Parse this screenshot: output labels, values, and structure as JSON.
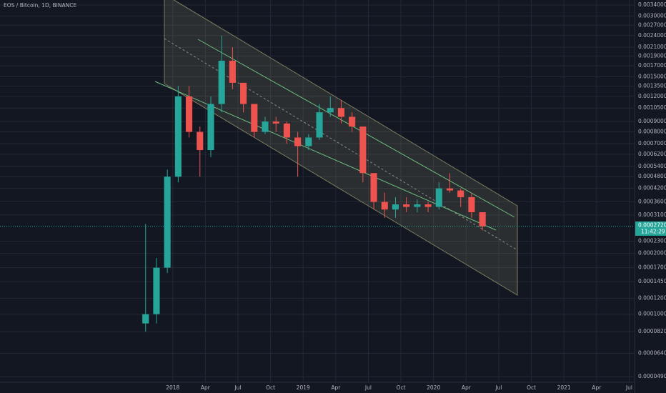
{
  "chart_data": {
    "type": "candlestick",
    "title": "EOS / Bitcoin, 1D, BINANCE",
    "log_scale": true,
    "grid": true,
    "up_color": "#26a69a",
    "down_color": "#ef5350",
    "x": [
      9.5,
      10.5,
      11.5,
      12.5,
      13.5,
      14.5,
      15.5,
      16.5,
      17.5,
      18.5,
      19.5,
      20.5,
      21.5,
      22.5,
      23.5,
      24.5,
      25.5,
      26.5,
      27.5,
      28.5,
      29.5,
      30.5,
      31.5,
      32.5,
      33.5,
      34.5,
      35.5,
      36.5,
      37.5,
      38.5,
      39.5,
      40.5
    ],
    "open": [
      9e-05,
      0.0001,
      0.00017,
      0.00048,
      0.0012,
      0.0008,
      0.00065,
      0.0011,
      0.0018,
      0.0014,
      0.0011,
      0.0008,
      0.0009,
      0.00088,
      0.00075,
      0.00068,
      0.00075,
      0.001,
      0.00105,
      0.00095,
      0.00085,
      0.0005,
      0.00036,
      0.00033,
      0.00035,
      0.00034,
      0.00035,
      0.00034,
      0.00042,
      0.00041,
      0.00038,
      0.00032
    ],
    "high": [
      0.00028,
      0.00019,
      0.00052,
      0.00135,
      0.00135,
      0.00085,
      0.0012,
      0.0024,
      0.0021,
      0.0014,
      0.0011,
      0.00095,
      0.00095,
      0.0009,
      0.0008,
      0.00078,
      0.0011,
      0.0012,
      0.00115,
      0.001,
      0.00085,
      0.0005,
      0.0004,
      0.00038,
      0.00038,
      0.00037,
      0.00036,
      0.00045,
      0.0005,
      0.00042,
      0.0004,
      0.00032
    ],
    "low": [
      8.2e-05,
      9e-05,
      0.00016,
      0.00045,
      0.00075,
      0.00048,
      0.0006,
      0.001,
      0.0013,
      0.001,
      0.00075,
      0.00078,
      0.0008,
      0.0007,
      0.00048,
      0.00065,
      0.00073,
      0.00095,
      0.00088,
      0.0008,
      0.00045,
      0.00033,
      0.0003,
      0.0003,
      0.00032,
      0.00032,
      0.00032,
      0.00033,
      0.0004,
      0.00034,
      0.0003,
      0.00026
    ],
    "close": [
      0.0001,
      0.00017,
      0.00048,
      0.0012,
      0.0008,
      0.00065,
      0.0011,
      0.0018,
      0.0014,
      0.0011,
      0.0008,
      0.0009,
      0.00088,
      0.00075,
      0.00068,
      0.00075,
      0.001,
      0.00105,
      0.00095,
      0.00085,
      0.0005,
      0.00036,
      0.00033,
      0.00035,
      0.00034,
      0.00035,
      0.00034,
      0.00042,
      0.00041,
      0.00038,
      0.00032,
      0.000272
    ],
    "price_tag": {
      "value": 0.000272,
      "label": "0.0002720"
    },
    "countdown": "11:42:29",
    "xlim": [
      -3.9,
      54.5
    ],
    "xticks": [
      {
        "value": 12,
        "label": "2018"
      },
      {
        "value": 15,
        "label": "Apr"
      },
      {
        "value": 18,
        "label": "Jul"
      },
      {
        "value": 21,
        "label": "Oct"
      },
      {
        "value": 24,
        "label": "2019"
      },
      {
        "value": 27,
        "label": "Apr"
      },
      {
        "value": 30,
        "label": "Jul"
      },
      {
        "value": 33,
        "label": "Oct"
      },
      {
        "value": 36,
        "label": "2020"
      },
      {
        "value": 39,
        "label": "Apr"
      },
      {
        "value": 42,
        "label": "Jul"
      },
      {
        "value": 45,
        "label": "Oct"
      },
      {
        "value": 48,
        "label": "2021"
      },
      {
        "value": 51,
        "label": "Apr"
      },
      {
        "value": 54,
        "label": "Jul"
      }
    ],
    "ylim": [
      4.6e-05,
      0.0036
    ],
    "yticks": [
      {
        "value": 0.0034,
        "label": "0.0034000"
      },
      {
        "value": 0.003,
        "label": "0.0030000"
      },
      {
        "value": 0.0027,
        "label": "0.0027000"
      },
      {
        "value": 0.0024,
        "label": "0.0024000"
      },
      {
        "value": 0.0021,
        "label": "0.0021000"
      },
      {
        "value": 0.0019,
        "label": "0.0019000"
      },
      {
        "value": 0.0017,
        "label": "0.0017000"
      },
      {
        "value": 0.0015,
        "label": "0.0015000"
      },
      {
        "value": 0.00135,
        "label": "0.0013500"
      },
      {
        "value": 0.0012,
        "label": "0.0012000"
      },
      {
        "value": 0.00105,
        "label": "0.0010500"
      },
      {
        "value": 0.0009,
        "label": "0.0009000"
      },
      {
        "value": 0.0008,
        "label": "0.0008000"
      },
      {
        "value": 0.0007,
        "label": "0.0007000"
      },
      {
        "value": 0.00062,
        "label": "0.0006200"
      },
      {
        "value": 0.00054,
        "label": "0.0005400"
      },
      {
        "value": 0.00048,
        "label": "0.0004800"
      },
      {
        "value": 0.00042,
        "label": "0.0004200"
      },
      {
        "value": 0.00036,
        "label": "0.0003600"
      },
      {
        "value": 0.00031,
        "label": "0.0003100"
      },
      {
        "value": 0.00023,
        "label": "0.0002300"
      },
      {
        "value": 0.0002,
        "label": "0.0002000"
      },
      {
        "value": 0.00017,
        "label": "0.0001700"
      },
      {
        "value": 0.000145,
        "label": "0.0001450"
      },
      {
        "value": 0.00012,
        "label": "0.0001200"
      },
      {
        "value": 0.0001,
        "label": "0.0001000"
      },
      {
        "value": 8.2e-05,
        "label": "0.0000820"
      },
      {
        "value": 6.4e-05,
        "label": "0.0000640"
      },
      {
        "value": 4.9e-05,
        "label": "0.0000490"
      }
    ]
  }
}
